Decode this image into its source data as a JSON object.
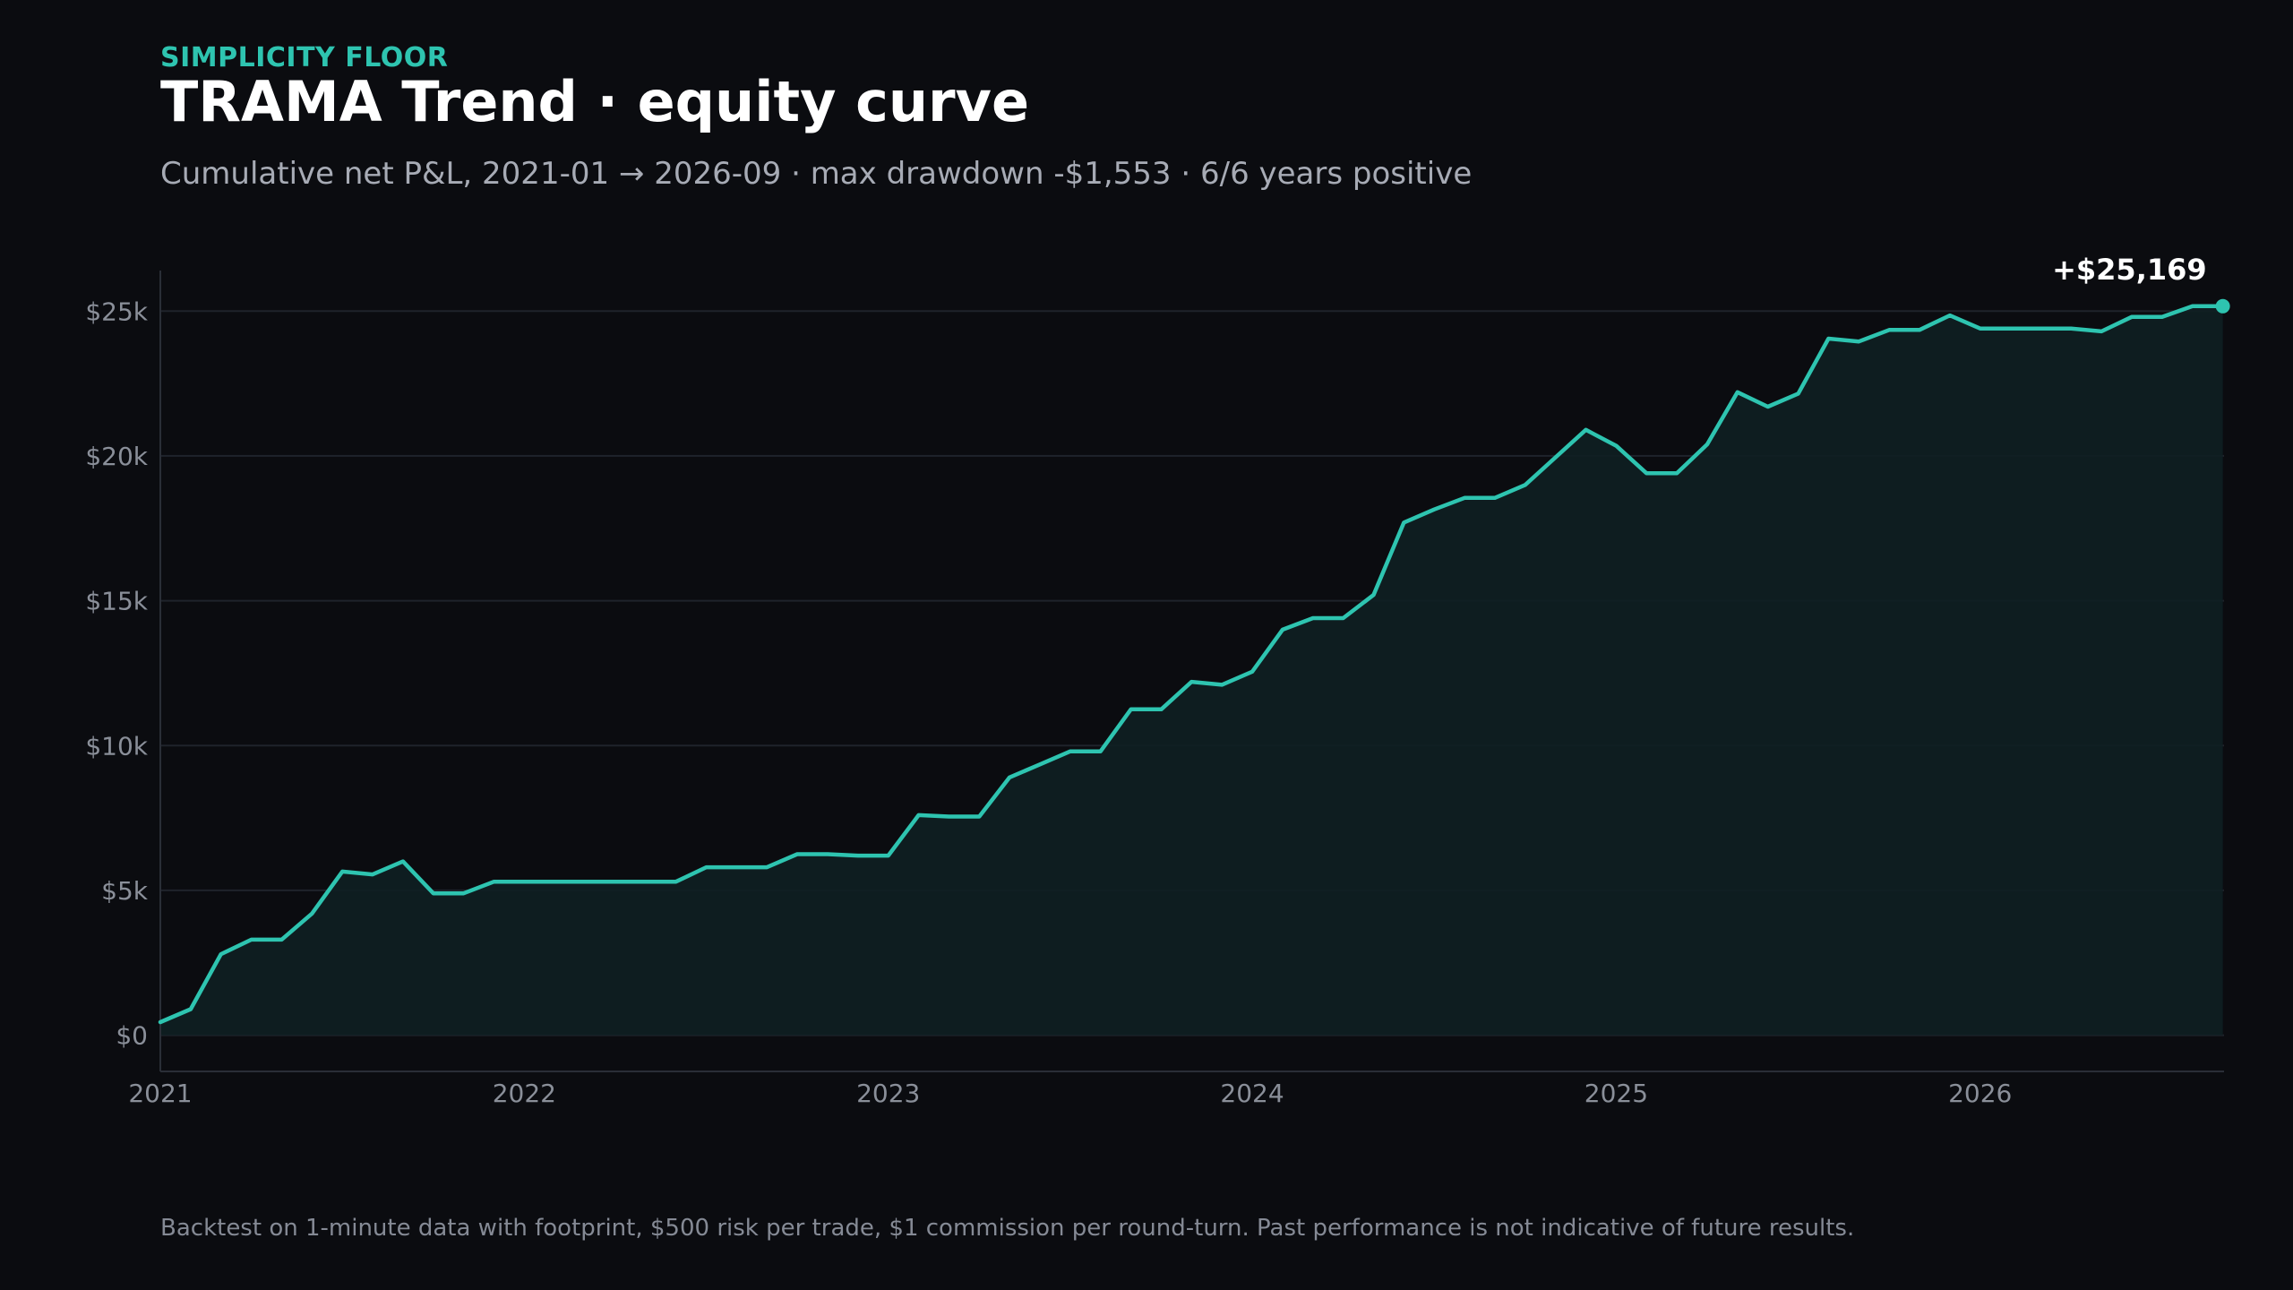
{
  "header": {
    "eyebrow": "SIMPLICITY FLOOR",
    "title": "TRAMA Trend · equity curve",
    "subtitle": "Cumulative net P&L, 2021-01 → 2026-09 · max drawdown -$1,553 · 6/6 years positive"
  },
  "footnote": "Backtest on 1-minute data with footprint, $500 risk per trade, $1 commission per round-turn. Past performance is not indicative of future results.",
  "colors": {
    "background": "#0b0c10",
    "line": "#2ec4b0",
    "area": "#0e1f22",
    "grid": "#1f232b",
    "tick_text": "#8a8f99"
  },
  "chart_data": {
    "type": "area",
    "x_axis": {
      "ticks": [
        {
          "value": 2021,
          "label": "2021"
        },
        {
          "value": 2022,
          "label": "2022"
        },
        {
          "value": 2023,
          "label": "2023"
        },
        {
          "value": 2024,
          "label": "2024"
        },
        {
          "value": 2025,
          "label": "2025"
        },
        {
          "value": 2026,
          "label": "2026"
        }
      ],
      "range": [
        2021,
        2026.67
      ]
    },
    "y_axis": {
      "ticks": [
        {
          "value": 0,
          "label": "$0"
        },
        {
          "value": 5000,
          "label": "$5k"
        },
        {
          "value": 10000,
          "label": "$10k"
        },
        {
          "value": 15000,
          "label": "$15k"
        },
        {
          "value": 20000,
          "label": "$20k"
        },
        {
          "value": 25000,
          "label": "$25k"
        }
      ],
      "range": [
        -1250,
        26400
      ]
    },
    "grid": true,
    "end_label": "+$25,169",
    "series": [
      {
        "x": [
          "2021-01",
          "2021-02",
          "2021-03",
          "2021-04",
          "2021-05",
          "2021-06",
          "2021-07",
          "2021-08",
          "2021-09",
          "2021-10",
          "2021-11",
          "2021-12",
          "2022-01",
          "2022-02",
          "2022-03",
          "2022-04",
          "2022-05",
          "2022-06",
          "2022-07",
          "2022-08",
          "2022-09",
          "2022-10",
          "2022-11",
          "2022-12",
          "2023-01",
          "2023-02",
          "2023-03",
          "2023-04",
          "2023-05",
          "2023-06",
          "2023-07",
          "2023-08",
          "2023-09",
          "2023-10",
          "2023-11",
          "2023-12",
          "2024-01",
          "2024-02",
          "2024-03",
          "2024-04",
          "2024-05",
          "2024-06",
          "2024-07",
          "2024-08",
          "2024-09",
          "2024-10",
          "2024-11",
          "2024-12",
          "2025-01",
          "2025-02",
          "2025-03",
          "2025-04",
          "2025-05",
          "2025-06",
          "2025-07",
          "2025-08",
          "2025-09",
          "2025-10",
          "2025-11",
          "2025-12",
          "2026-01",
          "2026-02",
          "2026-03",
          "2026-04",
          "2026-05",
          "2026-06",
          "2026-07",
          "2026-08",
          "2026-09"
        ],
        "values": [
          450,
          900,
          2800,
          3300,
          3300,
          4200,
          5650,
          5550,
          6000,
          4900,
          4900,
          5300,
          5300,
          5300,
          5300,
          5300,
          5300,
          5300,
          5800,
          5800,
          5800,
          6250,
          6250,
          6200,
          6200,
          7600,
          7550,
          7550,
          8900,
          9350,
          9800,
          9800,
          11250,
          11250,
          12200,
          12100,
          12550,
          14000,
          14400,
          14400,
          15200,
          17700,
          18150,
          18550,
          18550,
          19000,
          19950,
          20900,
          20350,
          19400,
          19400,
          20400,
          22200,
          21700,
          22150,
          24050,
          23950,
          24350,
          24350,
          24850,
          24400,
          24400,
          24400,
          24400,
          24300,
          24800,
          24800,
          25169,
          25169
        ]
      }
    ]
  }
}
